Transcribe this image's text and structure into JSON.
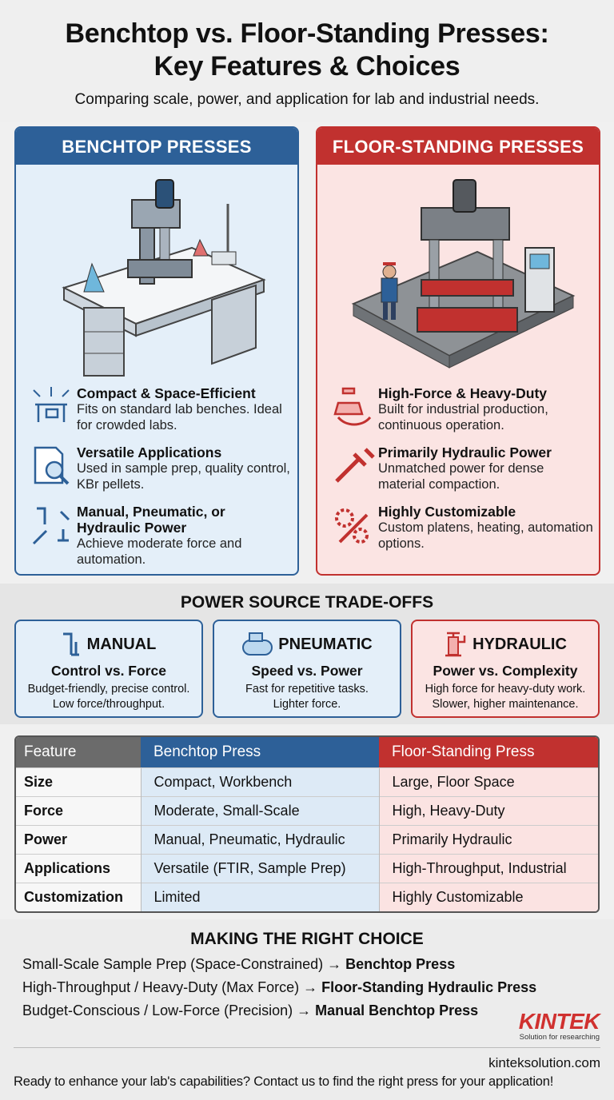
{
  "header": {
    "title_line1": "Benchtop vs. Floor-Standing Presses:",
    "title_line2": "Key Features & Choices",
    "subtitle": "Comparing scale, power, and application for lab and industrial needs."
  },
  "benchtop": {
    "title": "BENCHTOP PRESSES",
    "color": "#2d6098",
    "features": [
      {
        "icon": "space-efficient-bench-icon",
        "title": "Compact & Space-Efficient",
        "desc": "Fits on standard lab benches. Ideal for crowded labs."
      },
      {
        "icon": "document-magnifier-icon",
        "title": "Versatile Applications",
        "desc": "Used in sample prep, quality control, KBr pellets."
      },
      {
        "icon": "power-tools-icon",
        "title": "Manual, Pneumatic, or Hydraulic Power",
        "desc": "Achieve moderate force and automation."
      }
    ]
  },
  "floor": {
    "title": "FLOOR-STANDING PRESSES",
    "color": "#c1312f",
    "features": [
      {
        "icon": "weight-muscle-icon",
        "title": "High-Force & Heavy-Duty",
        "desc": "Built for industrial production, continuous operation."
      },
      {
        "icon": "hydraulic-cylinder-icon",
        "title": "Primarily Hydraulic Power",
        "desc": "Unmatched power for dense material compaction."
      },
      {
        "icon": "gears-wrench-icon",
        "title": "Highly Customizable",
        "desc": "Custom platens, heating, automation options."
      }
    ]
  },
  "power": {
    "title": "POWER SOURCE TRADE-OFFS",
    "cards": [
      {
        "icon": "hand-crank-icon",
        "name": "MANUAL",
        "subtitle": "Control vs. Force",
        "line1": "Budget-friendly, precise control.",
        "line2": "Low force/throughput."
      },
      {
        "icon": "air-compressor-icon",
        "name": "PNEUMATIC",
        "subtitle": "Speed vs. Power",
        "line1": "Fast for repetitive tasks.",
        "line2": "Lighter force."
      },
      {
        "icon": "hydraulic-jack-icon",
        "name": "HYDRAULIC",
        "subtitle": "Power vs. Complexity",
        "line1": "High force for heavy-duty work.",
        "line2": "Slower, higher maintenance."
      }
    ]
  },
  "table": {
    "headers": [
      "Feature",
      "Benchtop Press",
      "Floor-Standing Press"
    ],
    "rows": [
      [
        "Size",
        "Compact, Workbench",
        "Large, Floor Space"
      ],
      [
        "Force",
        "Moderate, Small-Scale",
        "High, Heavy-Duty"
      ],
      [
        "Power",
        "Manual, Pneumatic, Hydraulic",
        "Primarily Hydraulic"
      ],
      [
        "Applications",
        "Versatile (FTIR, Sample Prep)",
        "High-Throughput, Industrial"
      ],
      [
        "Customization",
        "Limited",
        "Highly Customizable"
      ]
    ]
  },
  "choice": {
    "title": "MAKING THE RIGHT CHOICE",
    "items": [
      {
        "condition": "Small-Scale Sample Prep (Space-Constrained) → ",
        "result": "Benchtop Press"
      },
      {
        "condition": "High-Throughput / Heavy-Duty (Max Force) → ",
        "result": "Floor-Standing Hydraulic Press"
      },
      {
        "condition": "Budget-Conscious / Low-Force (Precision) → ",
        "result": "Manual Benchtop Press"
      }
    ]
  },
  "footer": {
    "logo": "KINTEK",
    "tagline": "Solution for researching",
    "website": "kinteksolution.com",
    "cta": "Ready to enhance your lab's capabilities? Contact us to find the right press for your application!"
  }
}
